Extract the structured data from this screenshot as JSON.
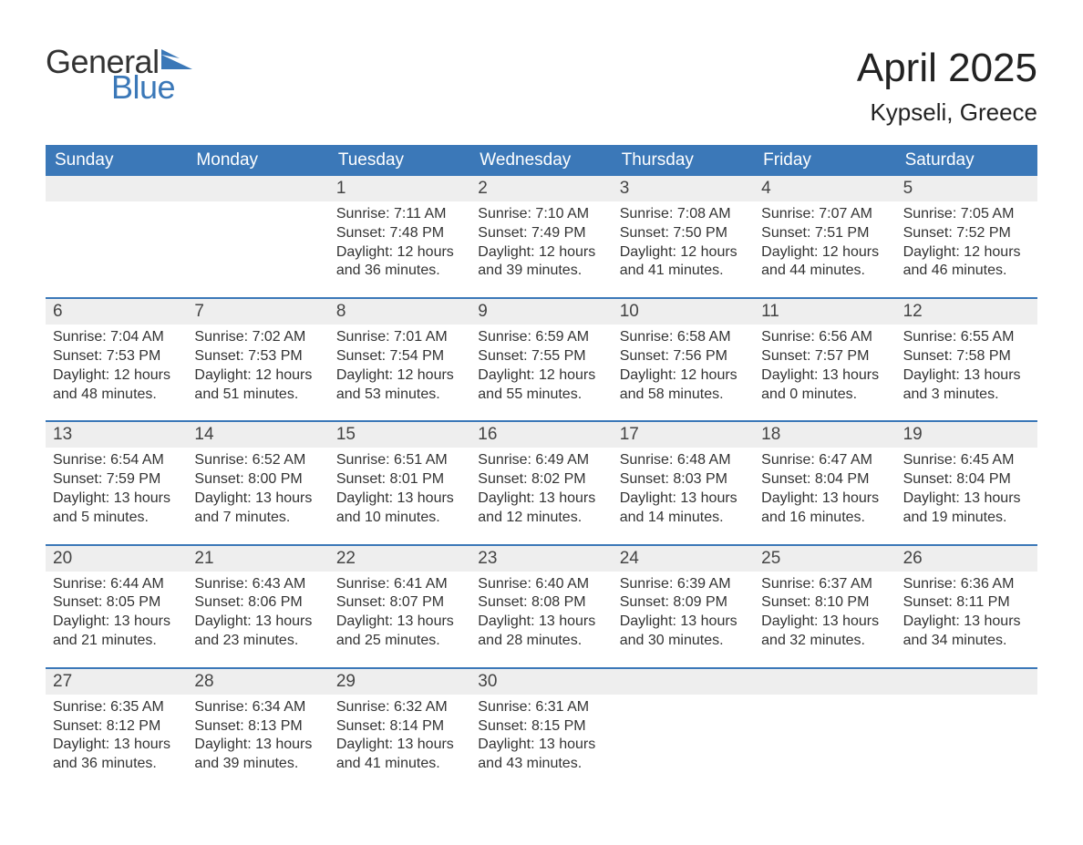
{
  "logo": {
    "text_general": "General",
    "text_blue": "Blue",
    "flag_color": "#3b78b8"
  },
  "title": "April 2025",
  "location": "Kypseli, Greece",
  "colors": {
    "header_bg": "#3b78b8",
    "header_text": "#ffffff",
    "daynum_bg": "#eeeeee",
    "week_divider": "#3b78b8",
    "body_text": "#333333"
  },
  "fonts": {
    "title_size_pt": 44,
    "location_size_pt": 26,
    "weekday_size_pt": 19,
    "daynum_size_pt": 19,
    "detail_size_pt": 16
  },
  "weekdays": [
    "Sunday",
    "Monday",
    "Tuesday",
    "Wednesday",
    "Thursday",
    "Friday",
    "Saturday"
  ],
  "weeks": [
    {
      "days": [
        {
          "num": "",
          "lines": []
        },
        {
          "num": "",
          "lines": []
        },
        {
          "num": "1",
          "lines": [
            "Sunrise: 7:11 AM",
            "Sunset: 7:48 PM",
            "Daylight: 12 hours",
            "and 36 minutes."
          ]
        },
        {
          "num": "2",
          "lines": [
            "Sunrise: 7:10 AM",
            "Sunset: 7:49 PM",
            "Daylight: 12 hours",
            "and 39 minutes."
          ]
        },
        {
          "num": "3",
          "lines": [
            "Sunrise: 7:08 AM",
            "Sunset: 7:50 PM",
            "Daylight: 12 hours",
            "and 41 minutes."
          ]
        },
        {
          "num": "4",
          "lines": [
            "Sunrise: 7:07 AM",
            "Sunset: 7:51 PM",
            "Daylight: 12 hours",
            "and 44 minutes."
          ]
        },
        {
          "num": "5",
          "lines": [
            "Sunrise: 7:05 AM",
            "Sunset: 7:52 PM",
            "Daylight: 12 hours",
            "and 46 minutes."
          ]
        }
      ]
    },
    {
      "days": [
        {
          "num": "6",
          "lines": [
            "Sunrise: 7:04 AM",
            "Sunset: 7:53 PM",
            "Daylight: 12 hours",
            "and 48 minutes."
          ]
        },
        {
          "num": "7",
          "lines": [
            "Sunrise: 7:02 AM",
            "Sunset: 7:53 PM",
            "Daylight: 12 hours",
            "and 51 minutes."
          ]
        },
        {
          "num": "8",
          "lines": [
            "Sunrise: 7:01 AM",
            "Sunset: 7:54 PM",
            "Daylight: 12 hours",
            "and 53 minutes."
          ]
        },
        {
          "num": "9",
          "lines": [
            "Sunrise: 6:59 AM",
            "Sunset: 7:55 PM",
            "Daylight: 12 hours",
            "and 55 minutes."
          ]
        },
        {
          "num": "10",
          "lines": [
            "Sunrise: 6:58 AM",
            "Sunset: 7:56 PM",
            "Daylight: 12 hours",
            "and 58 minutes."
          ]
        },
        {
          "num": "11",
          "lines": [
            "Sunrise: 6:56 AM",
            "Sunset: 7:57 PM",
            "Daylight: 13 hours",
            "and 0 minutes."
          ]
        },
        {
          "num": "12",
          "lines": [
            "Sunrise: 6:55 AM",
            "Sunset: 7:58 PM",
            "Daylight: 13 hours",
            "and 3 minutes."
          ]
        }
      ]
    },
    {
      "days": [
        {
          "num": "13",
          "lines": [
            "Sunrise: 6:54 AM",
            "Sunset: 7:59 PM",
            "Daylight: 13 hours",
            "and 5 minutes."
          ]
        },
        {
          "num": "14",
          "lines": [
            "Sunrise: 6:52 AM",
            "Sunset: 8:00 PM",
            "Daylight: 13 hours",
            "and 7 minutes."
          ]
        },
        {
          "num": "15",
          "lines": [
            "Sunrise: 6:51 AM",
            "Sunset: 8:01 PM",
            "Daylight: 13 hours",
            "and 10 minutes."
          ]
        },
        {
          "num": "16",
          "lines": [
            "Sunrise: 6:49 AM",
            "Sunset: 8:02 PM",
            "Daylight: 13 hours",
            "and 12 minutes."
          ]
        },
        {
          "num": "17",
          "lines": [
            "Sunrise: 6:48 AM",
            "Sunset: 8:03 PM",
            "Daylight: 13 hours",
            "and 14 minutes."
          ]
        },
        {
          "num": "18",
          "lines": [
            "Sunrise: 6:47 AM",
            "Sunset: 8:04 PM",
            "Daylight: 13 hours",
            "and 16 minutes."
          ]
        },
        {
          "num": "19",
          "lines": [
            "Sunrise: 6:45 AM",
            "Sunset: 8:04 PM",
            "Daylight: 13 hours",
            "and 19 minutes."
          ]
        }
      ]
    },
    {
      "days": [
        {
          "num": "20",
          "lines": [
            "Sunrise: 6:44 AM",
            "Sunset: 8:05 PM",
            "Daylight: 13 hours",
            "and 21 minutes."
          ]
        },
        {
          "num": "21",
          "lines": [
            "Sunrise: 6:43 AM",
            "Sunset: 8:06 PM",
            "Daylight: 13 hours",
            "and 23 minutes."
          ]
        },
        {
          "num": "22",
          "lines": [
            "Sunrise: 6:41 AM",
            "Sunset: 8:07 PM",
            "Daylight: 13 hours",
            "and 25 minutes."
          ]
        },
        {
          "num": "23",
          "lines": [
            "Sunrise: 6:40 AM",
            "Sunset: 8:08 PM",
            "Daylight: 13 hours",
            "and 28 minutes."
          ]
        },
        {
          "num": "24",
          "lines": [
            "Sunrise: 6:39 AM",
            "Sunset: 8:09 PM",
            "Daylight: 13 hours",
            "and 30 minutes."
          ]
        },
        {
          "num": "25",
          "lines": [
            "Sunrise: 6:37 AM",
            "Sunset: 8:10 PM",
            "Daylight: 13 hours",
            "and 32 minutes."
          ]
        },
        {
          "num": "26",
          "lines": [
            "Sunrise: 6:36 AM",
            "Sunset: 8:11 PM",
            "Daylight: 13 hours",
            "and 34 minutes."
          ]
        }
      ]
    },
    {
      "days": [
        {
          "num": "27",
          "lines": [
            "Sunrise: 6:35 AM",
            "Sunset: 8:12 PM",
            "Daylight: 13 hours",
            "and 36 minutes."
          ]
        },
        {
          "num": "28",
          "lines": [
            "Sunrise: 6:34 AM",
            "Sunset: 8:13 PM",
            "Daylight: 13 hours",
            "and 39 minutes."
          ]
        },
        {
          "num": "29",
          "lines": [
            "Sunrise: 6:32 AM",
            "Sunset: 8:14 PM",
            "Daylight: 13 hours",
            "and 41 minutes."
          ]
        },
        {
          "num": "30",
          "lines": [
            "Sunrise: 6:31 AM",
            "Sunset: 8:15 PM",
            "Daylight: 13 hours",
            "and 43 minutes."
          ]
        },
        {
          "num": "",
          "lines": []
        },
        {
          "num": "",
          "lines": []
        },
        {
          "num": "",
          "lines": []
        }
      ]
    }
  ]
}
